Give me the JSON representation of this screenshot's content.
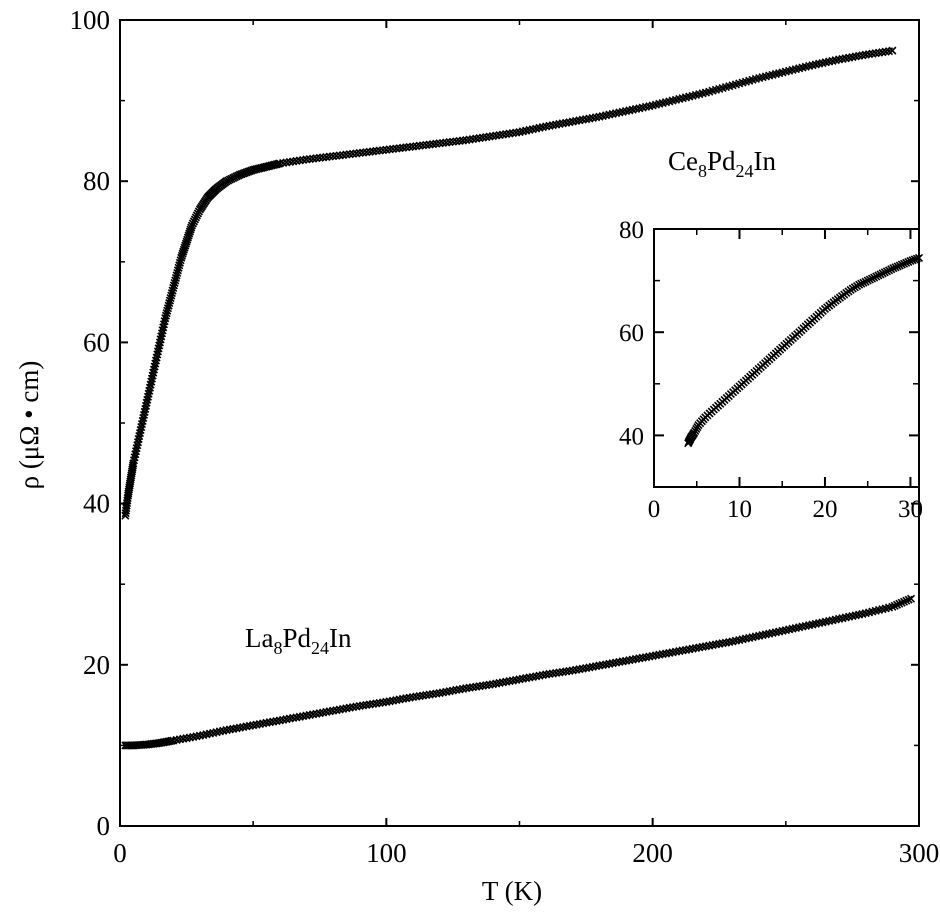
{
  "chart_data": [
    {
      "type": "scatter",
      "xlabel": "T (K)",
      "ylabel": "ρ (μΩ • cm)",
      "xlim": [
        0,
        300
      ],
      "ylim": [
        0,
        100
      ],
      "xticks": [
        "0",
        "100",
        "200",
        "300"
      ],
      "yticks": [
        "0",
        "20",
        "40",
        "60",
        "80",
        "100"
      ],
      "grid": false,
      "marker": "×",
      "series": [
        {
          "name": "Ce8Pd24In",
          "label_parts": [
            "Ce",
            "8",
            "Pd",
            "24",
            "In"
          ],
          "points": [
            [
              2,
              38.5
            ],
            [
              3,
              41
            ],
            [
              4,
              43
            ],
            [
              5,
              45
            ],
            [
              7,
              48
            ],
            [
              9,
              51
            ],
            [
              11,
              54
            ],
            [
              13,
              57
            ],
            [
              15,
              60
            ],
            [
              17,
              63
            ],
            [
              19,
              65.5
            ],
            [
              21,
              68
            ],
            [
              23,
              70.5
            ],
            [
              25,
              72.5
            ],
            [
              27,
              74.5
            ],
            [
              30,
              76.5
            ],
            [
              33,
              78
            ],
            [
              36,
              79
            ],
            [
              40,
              80
            ],
            [
              45,
              80.8
            ],
            [
              50,
              81.4
            ],
            [
              55,
              81.8
            ],
            [
              60,
              82.2
            ],
            [
              70,
              82.7
            ],
            [
              80,
              83.1
            ],
            [
              90,
              83.5
            ],
            [
              100,
              83.9
            ],
            [
              110,
              84.3
            ],
            [
              120,
              84.7
            ],
            [
              130,
              85.1
            ],
            [
              140,
              85.6
            ],
            [
              150,
              86.1
            ],
            [
              160,
              86.8
            ],
            [
              170,
              87.4
            ],
            [
              180,
              88
            ],
            [
              190,
              88.7
            ],
            [
              200,
              89.4
            ],
            [
              210,
              90.2
            ],
            [
              220,
              91
            ],
            [
              230,
              91.9
            ],
            [
              240,
              92.8
            ],
            [
              250,
              93.6
            ],
            [
              260,
              94.4
            ],
            [
              270,
              95.1
            ],
            [
              280,
              95.7
            ],
            [
              290,
              96.2
            ]
          ]
        },
        {
          "name": "La8Pd24In",
          "label_parts": [
            "La",
            "8",
            "Pd",
            "24",
            "In"
          ],
          "points": [
            [
              2,
              10
            ],
            [
              5,
              10
            ],
            [
              10,
              10.1
            ],
            [
              15,
              10.3
            ],
            [
              20,
              10.6
            ],
            [
              30,
              11.2
            ],
            [
              40,
              11.9
            ],
            [
              50,
              12.5
            ],
            [
              60,
              13.1
            ],
            [
              70,
              13.7
            ],
            [
              80,
              14.3
            ],
            [
              90,
              14.9
            ],
            [
              100,
              15.4
            ],
            [
              110,
              16
            ],
            [
              120,
              16.5
            ],
            [
              130,
              17.1
            ],
            [
              140,
              17.6
            ],
            [
              150,
              18.2
            ],
            [
              160,
              18.8
            ],
            [
              170,
              19.3
            ],
            [
              180,
              19.9
            ],
            [
              190,
              20.5
            ],
            [
              200,
              21.1
            ],
            [
              210,
              21.7
            ],
            [
              220,
              22.3
            ],
            [
              230,
              22.9
            ],
            [
              240,
              23.6
            ],
            [
              250,
              24.3
            ],
            [
              260,
              25
            ],
            [
              270,
              25.7
            ],
            [
              280,
              26.4
            ],
            [
              290,
              27.2
            ],
            [
              297,
              28.2
            ]
          ]
        }
      ]
    },
    {
      "type": "scatter",
      "inset": true,
      "xlabel": "",
      "ylabel": "",
      "xlim": [
        0,
        31
      ],
      "ylim": [
        30,
        80
      ],
      "xticks": [
        "0",
        "10",
        "20",
        "30"
      ],
      "yticks": [
        "40",
        "60",
        "80"
      ],
      "grid": false,
      "marker": "×",
      "series": [
        {
          "name": "Ce8Pd24In",
          "points": [
            [
              4,
              38.5
            ],
            [
              4.3,
              39.5
            ],
            [
              4.7,
              40.5
            ],
            [
              5.2,
              42
            ],
            [
              6,
              43.5
            ],
            [
              7,
              45
            ],
            [
              8,
              46.5
            ],
            [
              9,
              48
            ],
            [
              10,
              49.5
            ],
            [
              11,
              51
            ],
            [
              12,
              52.5
            ],
            [
              13,
              54
            ],
            [
              14,
              55.5
            ],
            [
              15,
              57
            ],
            [
              16,
              58.5
            ],
            [
              17,
              60
            ],
            [
              18,
              61.5
            ],
            [
              19,
              63
            ],
            [
              20,
              64.5
            ],
            [
              21,
              65.8
            ],
            [
              22,
              67
            ],
            [
              23,
              68.2
            ],
            [
              24,
              69.2
            ],
            [
              25,
              70
            ],
            [
              26,
              70.8
            ],
            [
              27,
              71.6
            ],
            [
              28,
              72.4
            ],
            [
              29,
              73.1
            ],
            [
              30,
              73.8
            ],
            [
              31,
              74.4
            ]
          ]
        }
      ]
    }
  ]
}
